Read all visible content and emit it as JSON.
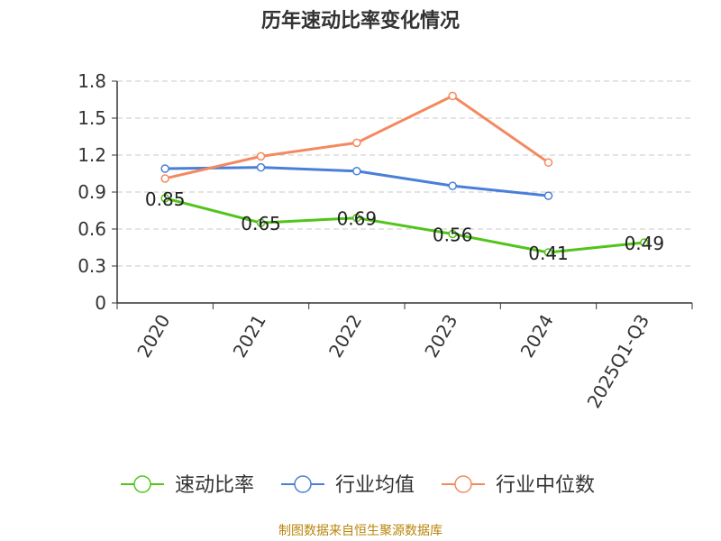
{
  "chart_data": {
    "type": "line",
    "title": "历年速动比率变化情况",
    "categories": [
      "2020",
      "2021",
      "2022",
      "2023",
      "2024",
      "2025Q1-Q3"
    ],
    "ylim": [
      0,
      1.8
    ],
    "yticks": [
      "0",
      "0.3",
      "0.6",
      "0.9",
      "1.2",
      "1.5",
      "1.8"
    ],
    "grid": true,
    "legend_position": "bottom",
    "series": [
      {
        "name": "速动比率",
        "color": "#52c41a",
        "values": [
          0.85,
          0.65,
          0.69,
          0.56,
          0.41,
          0.49
        ],
        "labels": [
          "0.85",
          "0.65",
          "0.69",
          "0.56",
          "0.41",
          "0.49"
        ]
      },
      {
        "name": "行业均值",
        "color": "#4a7fd8",
        "values": [
          1.09,
          1.1,
          1.07,
          0.95,
          0.87,
          null
        ]
      },
      {
        "name": "行业中位数",
        "color": "#f4895f",
        "values": [
          1.01,
          1.19,
          1.3,
          1.68,
          1.14,
          null
        ]
      }
    ]
  },
  "footer": "制图数据来自恒生聚源数据库"
}
